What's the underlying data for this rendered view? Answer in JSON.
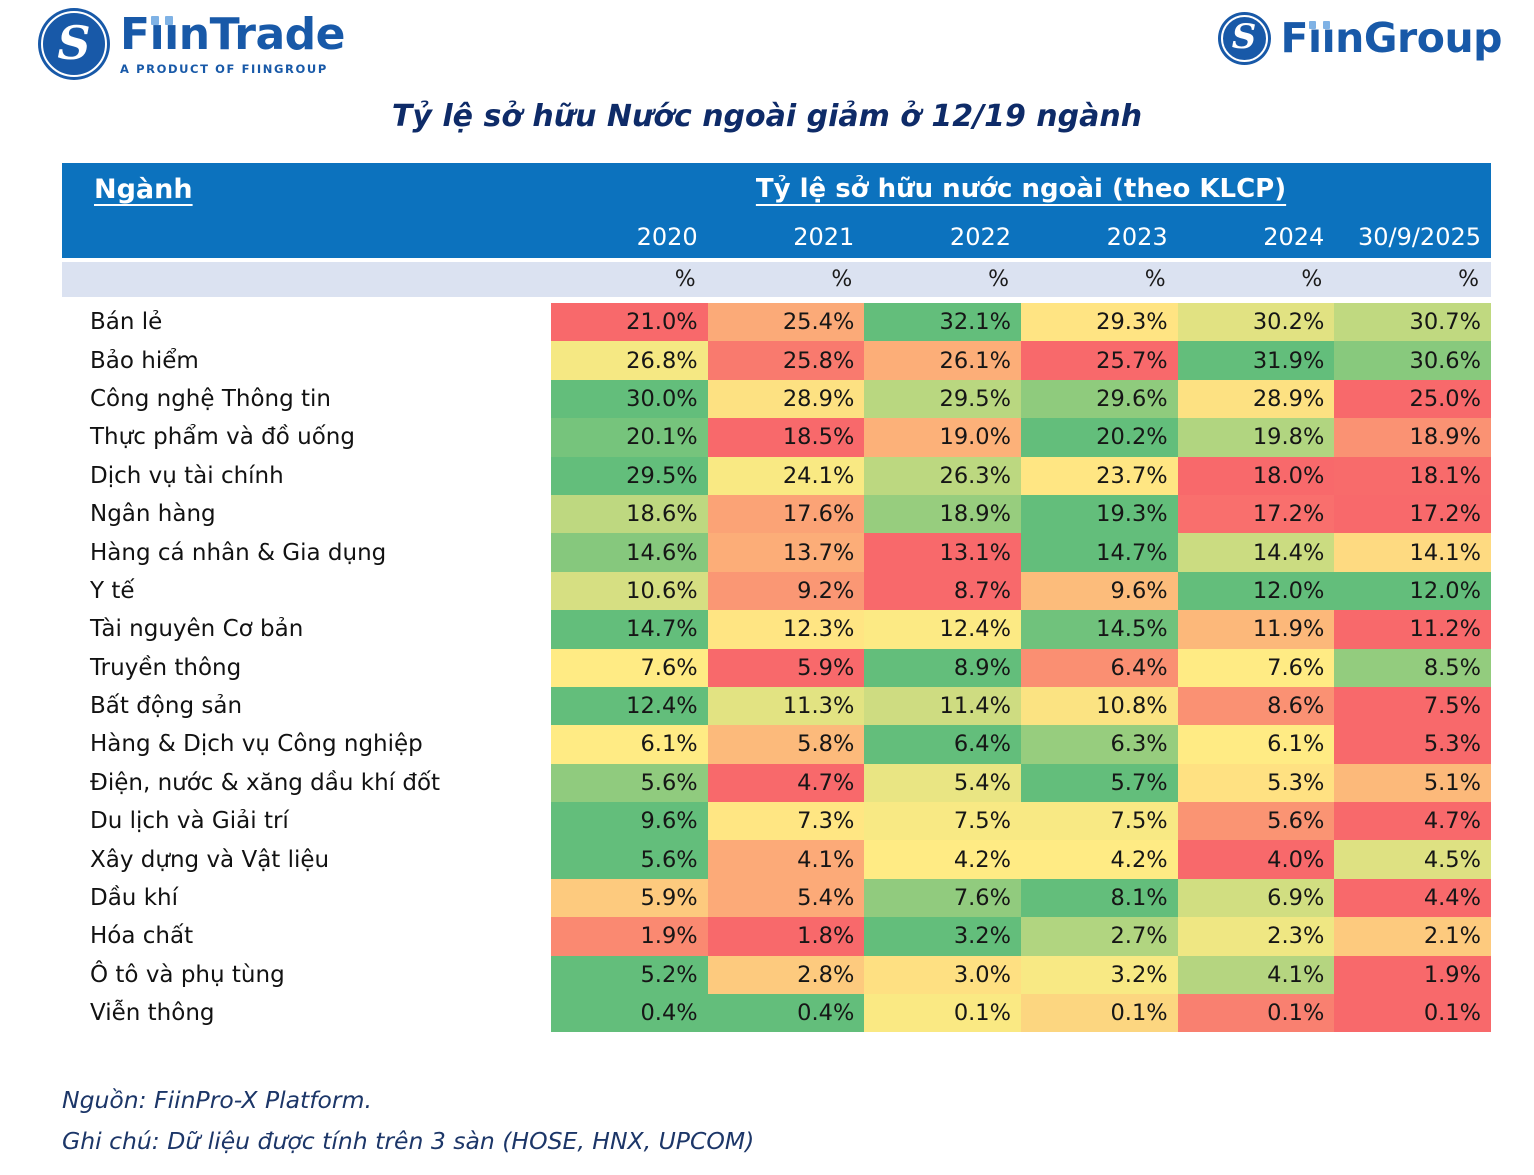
{
  "logos": {
    "fiintrade": {
      "name": "FiinTrade",
      "tagline": "A PRODUCT OF FIINGROUP",
      "monogram": "S"
    },
    "fiingroup": {
      "name": "FiinGroup",
      "monogram": "S"
    }
  },
  "title": "Tỷ lệ sở hữu Nước ngoài giảm ở 12/19 ngành",
  "table": {
    "industry_header": "Ngành",
    "group_header": "Tỷ lệ sở hữu nước ngoài (theo KLCP)",
    "unit": "%"
  },
  "footer": {
    "source": "Nguồn: FiinPro-X Platform.",
    "note": "Ghi chú: Dữ liệu được tính trên 3 sàn (HOSE, HNX, UPCOM)"
  },
  "colors": {
    "header_bg": "#0C72BE",
    "unit_row_bg": "#DBE2F1",
    "title_text": "#0E2B68",
    "brand_blue": "#1859A8",
    "brand_dot_blue": "#7FB2E5",
    "footer_text": "#1C3668",
    "heat_min_red": "#F8696B",
    "heat_mid_yellow": "#FFEB84",
    "heat_max_green": "#63BE7B"
  },
  "chart_data": {
    "type": "heatmap",
    "title": "Tỷ lệ sở hữu Nước ngoài giảm ở 12/19 ngành",
    "columns": [
      "2020",
      "2021",
      "2022",
      "2023",
      "2024",
      "30/9/2025"
    ],
    "unit": "%",
    "legend": "3-color scale applied per row: red = row min, yellow = row mid, green = row max",
    "rows": [
      {
        "label": "Bán lẻ",
        "values": [
          21.0,
          25.4,
          32.1,
          29.3,
          30.2,
          30.7
        ],
        "colors": [
          "#F8696B",
          "#FBAA78",
          "#63BE7B",
          "#FFE483",
          "#E1E282",
          "#C0D980"
        ]
      },
      {
        "label": "Bảo hiểm",
        "values": [
          26.8,
          25.8,
          26.1,
          25.7,
          31.9,
          30.6
        ],
        "colors": [
          "#F5E883",
          "#F97A6E",
          "#FCAE78",
          "#F8696B",
          "#63BE7B",
          "#88C97D"
        ]
      },
      {
        "label": "Công nghệ Thông tin",
        "values": [
          30.0,
          28.9,
          29.5,
          29.6,
          28.9,
          25.0
        ],
        "colors": [
          "#63BE7B",
          "#FDE182",
          "#B9D780",
          "#8FCB7D",
          "#FDE182",
          "#F8696B"
        ]
      },
      {
        "label": "Thực phẩm và đồ uống",
        "values": [
          20.1,
          18.5,
          19.0,
          20.2,
          19.8,
          18.9
        ],
        "colors": [
          "#76C47C",
          "#F8696B",
          "#FCB179",
          "#63BE7B",
          "#B1D580",
          "#FA9273"
        ]
      },
      {
        "label": "Dịch vụ tài chính",
        "values": [
          29.5,
          24.1,
          26.3,
          23.7,
          18.0,
          18.1
        ],
        "colors": [
          "#63BE7B",
          "#F9E983",
          "#BCD880",
          "#FFE683",
          "#F8696B",
          "#F86B6B"
        ]
      },
      {
        "label": "Ngân hàng",
        "values": [
          18.6,
          17.6,
          18.9,
          19.3,
          17.2,
          17.2
        ],
        "colors": [
          "#BED880",
          "#FBA376",
          "#97CD7E",
          "#63BE7B",
          "#F96F6D",
          "#F8696B"
        ]
      },
      {
        "label": "Hàng cá nhân & Gia dụng",
        "values": [
          14.6,
          13.7,
          13.1,
          14.7,
          14.4,
          14.1
        ],
        "colors": [
          "#86C87D",
          "#FCAD78",
          "#F8696B",
          "#63BE7B",
          "#CBDC81",
          "#FEDA81"
        ]
      },
      {
        "label": "Y tế",
        "values": [
          10.6,
          9.2,
          8.7,
          9.6,
          12.0,
          12.0
        ],
        "colors": [
          "#D6DF82",
          "#FA9774",
          "#F8696B",
          "#FCBC7B",
          "#63BE7B",
          "#63BE7B"
        ]
      },
      {
        "label": "Tài nguyên Cơ bản",
        "values": [
          14.7,
          12.3,
          12.4,
          14.5,
          11.9,
          11.2
        ],
        "colors": [
          "#63BE7B",
          "#FFE583",
          "#FCEA84",
          "#70C27C",
          "#FCB87A",
          "#F8696B"
        ]
      },
      {
        "label": "Truyền thông",
        "values": [
          7.6,
          5.9,
          8.9,
          6.4,
          7.6,
          8.5
        ],
        "colors": [
          "#FFEB84",
          "#F8696B",
          "#63BE7B",
          "#FA8F72",
          "#FFEB84",
          "#93CC7E"
        ]
      },
      {
        "label": "Bất động sản",
        "values": [
          12.4,
          11.3,
          11.4,
          10.8,
          8.6,
          7.5
        ],
        "colors": [
          "#63BE7B",
          "#E2E382",
          "#CEDC81",
          "#FBE382",
          "#FA9173",
          "#F8696B"
        ]
      },
      {
        "label": "Hàng & Dịch vụ Công nghiệp",
        "values": [
          6.1,
          5.8,
          6.4,
          6.3,
          6.1,
          5.3
        ],
        "colors": [
          "#FFEB84",
          "#FCBA7B",
          "#63BE7B",
          "#97CD7E",
          "#FFEB84",
          "#F8696B"
        ]
      },
      {
        "label": "Điện, nước & xăng dầu khí đốt",
        "values": [
          5.6,
          4.7,
          5.4,
          5.7,
          5.3,
          5.1
        ],
        "colors": [
          "#90CB7E",
          "#F8696B",
          "#E9E583",
          "#63BE7B",
          "#FFE182",
          "#FCB97A"
        ]
      },
      {
        "label": "Du lịch và Giải trí",
        "values": [
          9.6,
          7.3,
          7.5,
          7.5,
          5.6,
          4.7
        ],
        "colors": [
          "#63BE7B",
          "#FFE683",
          "#F8E984",
          "#F8E984",
          "#FA9473",
          "#F8696B"
        ]
      },
      {
        "label": "Xây dựng và Vật liệu",
        "values": [
          5.6,
          4.1,
          4.2,
          4.2,
          4.0,
          4.5
        ],
        "colors": [
          "#63BE7B",
          "#FCAA78",
          "#FFEB84",
          "#FFEB84",
          "#F8696B",
          "#DEE182"
        ]
      },
      {
        "label": "Dầu khí",
        "values": [
          5.9,
          5.4,
          7.6,
          8.1,
          6.9,
          4.4
        ],
        "colors": [
          "#FDCA7E",
          "#FCAA78",
          "#91CB7E",
          "#63BE7B",
          "#D1DE81",
          "#F8696B"
        ]
      },
      {
        "label": "Hóa chất",
        "values": [
          1.9,
          1.8,
          3.2,
          2.7,
          2.3,
          2.1
        ],
        "colors": [
          "#FA8971",
          "#F8696B",
          "#63BE7B",
          "#B1D580",
          "#EFE783",
          "#FDCA7E"
        ]
      },
      {
        "label": "Ô tô và phụ tùng",
        "values": [
          5.2,
          2.8,
          3.0,
          3.2,
          4.1,
          1.9
        ],
        "colors": [
          "#63BE7B",
          "#FDCA7E",
          "#FEE082",
          "#F8E984",
          "#B5D580",
          "#F8696B"
        ]
      },
      {
        "label": "Viễn thông",
        "values": [
          0.4,
          0.4,
          0.1,
          0.1,
          0.1,
          0.1
        ],
        "colors": [
          "#63BE7B",
          "#63BE7B",
          "#FAE983",
          "#FCD680",
          "#F98070",
          "#F8696B"
        ]
      }
    ]
  }
}
